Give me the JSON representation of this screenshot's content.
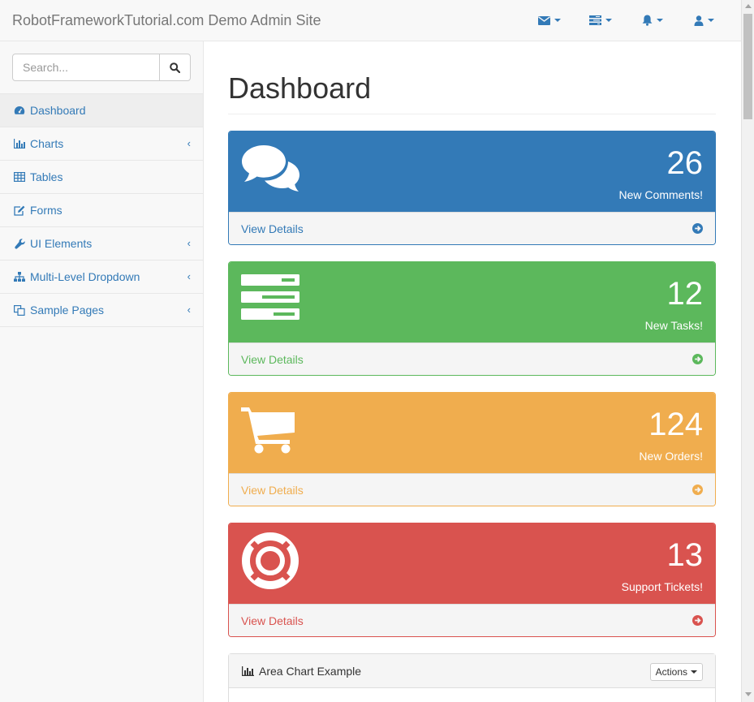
{
  "navbar": {
    "brand": "RobotFrameworkTutorial.com Demo Admin Site",
    "dropdowns": [
      {
        "icon": "envelope-icon"
      },
      {
        "icon": "tasks-icon"
      },
      {
        "icon": "bell-icon"
      },
      {
        "icon": "user-icon"
      }
    ],
    "accent": "#337ab7"
  },
  "sidebar": {
    "search_placeholder": "Search...",
    "items": [
      {
        "label": "Dashboard",
        "icon": "dashboard-icon",
        "active": true
      },
      {
        "label": "Charts",
        "icon": "bar-chart-icon",
        "has_children": true
      },
      {
        "label": "Tables",
        "icon": "table-icon"
      },
      {
        "label": "Forms",
        "icon": "edit-icon"
      },
      {
        "label": "UI Elements",
        "icon": "wrench-icon",
        "has_children": true
      },
      {
        "label": "Multi-Level Dropdown",
        "icon": "sitemap-icon",
        "has_children": true
      },
      {
        "label": "Sample Pages",
        "icon": "files-icon",
        "has_children": true
      }
    ],
    "arrow_glyph": "‹"
  },
  "main": {
    "title": "Dashboard",
    "panels": [
      {
        "count": "26",
        "label": "New Comments!",
        "link": "View Details",
        "icon": "comments-icon",
        "color": "#337ab7"
      },
      {
        "count": "12",
        "label": "New Tasks!",
        "link": "View Details",
        "icon": "tasks-icon",
        "color": "#5cb85c"
      },
      {
        "count": "124",
        "label": "New Orders!",
        "link": "View Details",
        "icon": "shopping-cart-icon",
        "color": "#f0ad4e"
      },
      {
        "count": "13",
        "label": "Support Tickets!",
        "link": "View Details",
        "icon": "support-icon",
        "color": "#d9534f"
      }
    ],
    "chart_panel": {
      "title": "Area Chart Example",
      "actions_label": "Actions"
    }
  }
}
